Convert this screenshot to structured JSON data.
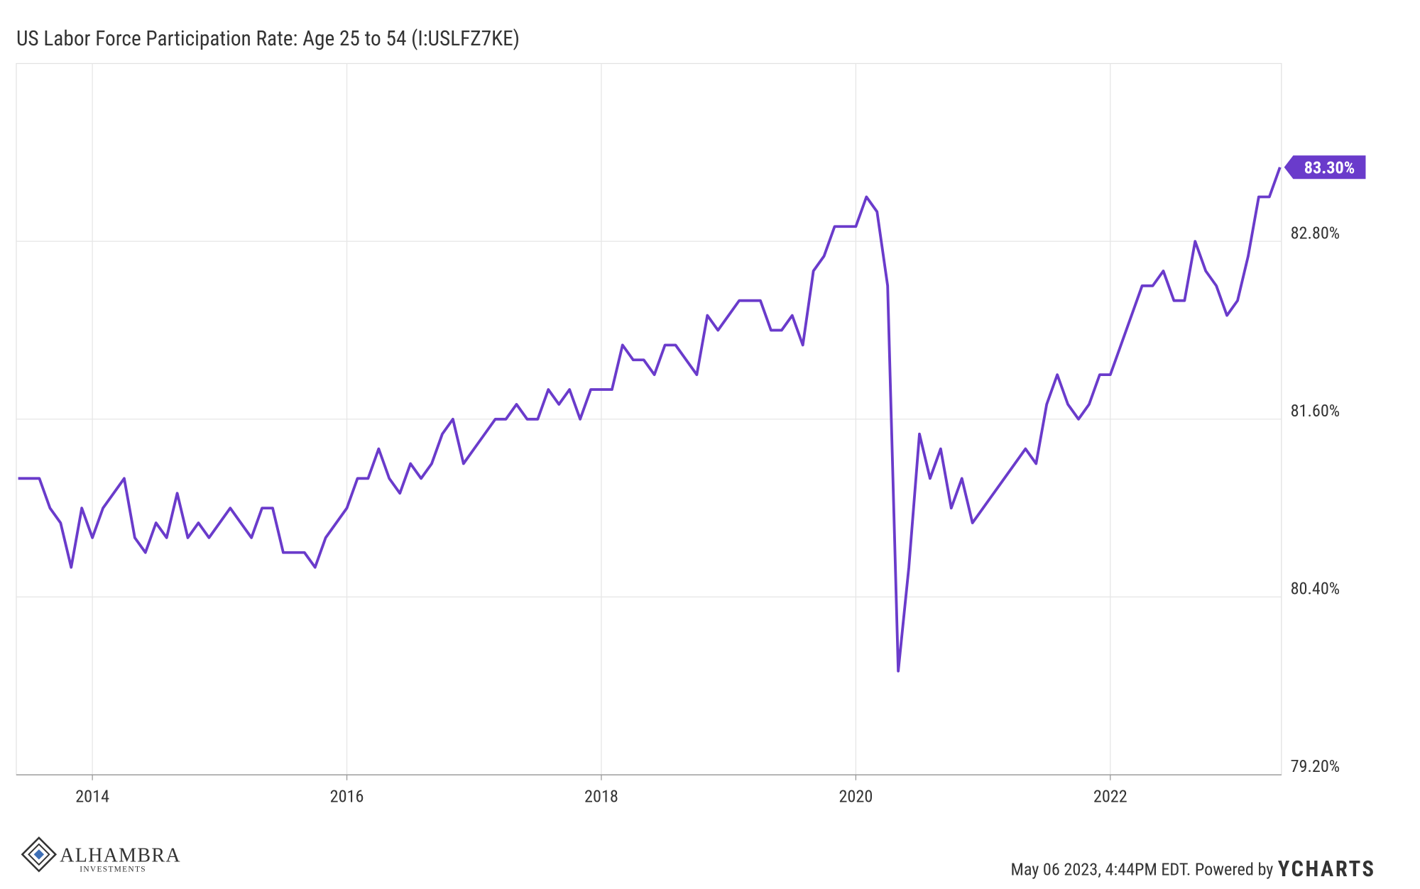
{
  "chart_data": {
    "type": "line",
    "title": "US Labor Force Participation Rate: Age 25 to 54 (I:USLFZ7KE)",
    "x": [
      "2013-05",
      "2013-06",
      "2013-07",
      "2013-08",
      "2013-09",
      "2013-10",
      "2013-11",
      "2013-12",
      "2014-01",
      "2014-02",
      "2014-03",
      "2014-04",
      "2014-05",
      "2014-06",
      "2014-07",
      "2014-08",
      "2014-09",
      "2014-10",
      "2014-11",
      "2014-12",
      "2015-01",
      "2015-02",
      "2015-03",
      "2015-04",
      "2015-05",
      "2015-06",
      "2015-07",
      "2015-08",
      "2015-09",
      "2015-10",
      "2015-11",
      "2015-12",
      "2016-01",
      "2016-02",
      "2016-03",
      "2016-04",
      "2016-05",
      "2016-06",
      "2016-07",
      "2016-08",
      "2016-09",
      "2016-10",
      "2016-11",
      "2016-12",
      "2017-01",
      "2017-02",
      "2017-03",
      "2017-04",
      "2017-05",
      "2017-06",
      "2017-07",
      "2017-08",
      "2017-09",
      "2017-10",
      "2017-11",
      "2017-12",
      "2018-01",
      "2018-02",
      "2018-03",
      "2018-04",
      "2018-05",
      "2018-06",
      "2018-07",
      "2018-08",
      "2018-09",
      "2018-10",
      "2018-11",
      "2018-12",
      "2019-01",
      "2019-02",
      "2019-03",
      "2019-04",
      "2019-05",
      "2019-06",
      "2019-07",
      "2019-08",
      "2019-09",
      "2019-10",
      "2019-11",
      "2019-12",
      "2020-01",
      "2020-02",
      "2020-03",
      "2020-04",
      "2020-05",
      "2020-06",
      "2020-07",
      "2020-08",
      "2020-09",
      "2020-10",
      "2020-11",
      "2020-12",
      "2021-01",
      "2021-02",
      "2021-03",
      "2021-04",
      "2021-05",
      "2021-06",
      "2021-07",
      "2021-08",
      "2021-09",
      "2021-10",
      "2021-11",
      "2021-12",
      "2022-01",
      "2022-02",
      "2022-03",
      "2022-04",
      "2022-05",
      "2022-06",
      "2022-07",
      "2022-08",
      "2022-09",
      "2022-10",
      "2022-11",
      "2022-12",
      "2023-01",
      "2023-02",
      "2023-03",
      "2023-04"
    ],
    "series": [
      {
        "name": "US Labor Force Participation Rate: Age 25 to 54",
        "color": "#6a3bcb",
        "values": [
          81.2,
          81.2,
          81.2,
          81.0,
          80.9,
          80.6,
          81.0,
          80.8,
          81.0,
          81.1,
          81.2,
          80.8,
          80.7,
          80.9,
          80.8,
          81.1,
          80.8,
          80.9,
          80.8,
          80.9,
          81.0,
          80.9,
          80.8,
          81.0,
          81.0,
          80.7,
          80.7,
          80.7,
          80.6,
          80.8,
          80.9,
          81.0,
          81.2,
          81.2,
          81.4,
          81.2,
          81.1,
          81.3,
          81.2,
          81.3,
          81.5,
          81.6,
          81.3,
          81.4,
          81.5,
          81.6,
          81.6,
          81.7,
          81.6,
          81.6,
          81.8,
          81.7,
          81.8,
          81.6,
          81.8,
          81.8,
          81.8,
          82.1,
          82.0,
          82.0,
          81.9,
          82.1,
          82.1,
          82.0,
          81.9,
          82.3,
          82.2,
          82.3,
          82.4,
          82.4,
          82.4,
          82.2,
          82.2,
          82.3,
          82.1,
          82.6,
          82.7,
          82.9,
          82.9,
          82.9,
          83.1,
          83.0,
          82.5,
          79.9,
          80.6,
          81.5,
          81.2,
          81.4,
          81.0,
          81.2,
          80.9,
          81.0,
          81.1,
          81.2,
          81.3,
          81.4,
          81.3,
          81.7,
          81.9,
          81.7,
          81.6,
          81.7,
          81.9,
          81.9,
          82.1,
          82.3,
          82.5,
          82.5,
          82.6,
          82.4,
          82.4,
          82.8,
          82.6,
          82.5,
          82.3,
          82.4,
          82.7,
          83.1,
          83.1,
          83.3
        ]
      }
    ],
    "annotations": [
      {
        "value": 83.3,
        "label": "83.30%"
      }
    ],
    "xlim": [
      2013.402,
      2023.345
    ],
    "xticks": [
      2014,
      2016,
      2018,
      2020,
      2022
    ],
    "ylim": [
      79.2,
      84.0
    ],
    "yticks": [
      {
        "value": 79.2,
        "label": "79.20%"
      },
      {
        "value": 80.4,
        "label": "80.40%"
      },
      {
        "value": 81.6,
        "label": "81.60%"
      },
      {
        "value": 82.8,
        "label": "82.80%"
      }
    ],
    "grid": true,
    "footer": {
      "timestamp": "May 06 2023, 4:44PM EDT. Powered by",
      "brand": "YCHARTS"
    },
    "logo": {
      "name": "ALHAMBRA",
      "subtitle": "INVESTMENTS"
    }
  }
}
